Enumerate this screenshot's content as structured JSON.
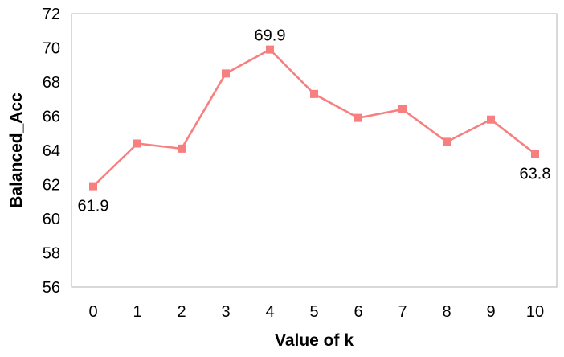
{
  "chart_data": {
    "type": "line",
    "title": "",
    "xlabel": "Value of k",
    "ylabel": "Balanced_Acc",
    "x": [
      0,
      1,
      2,
      3,
      4,
      5,
      6,
      7,
      8,
      9,
      10
    ],
    "x_tick_labels": [
      "0",
      "1",
      "2",
      "3",
      "4",
      "5",
      "6",
      "7",
      "8",
      "9",
      "10"
    ],
    "y_ticks": [
      56,
      58,
      60,
      62,
      64,
      66,
      68,
      70,
      72
    ],
    "y_tick_labels": [
      "56",
      "58",
      "60",
      "62",
      "64",
      "66",
      "68",
      "70",
      "72"
    ],
    "ylim": [
      56,
      72
    ],
    "xlim": [
      0,
      10
    ],
    "grid": false,
    "legend": "none",
    "series": [
      {
        "values": [
          61.9,
          64.4,
          64.1,
          68.5,
          69.9,
          67.3,
          65.9,
          66.4,
          64.5,
          65.8,
          63.8
        ],
        "color": "#f77f7f",
        "marker": "square"
      }
    ],
    "data_labels": [
      {
        "index": 0,
        "text": "61.9",
        "position": "below"
      },
      {
        "index": 4,
        "text": "69.9",
        "position": "above"
      },
      {
        "index": 10,
        "text": "63.8",
        "position": "below"
      }
    ],
    "frame_color": "#b3b3b3"
  }
}
